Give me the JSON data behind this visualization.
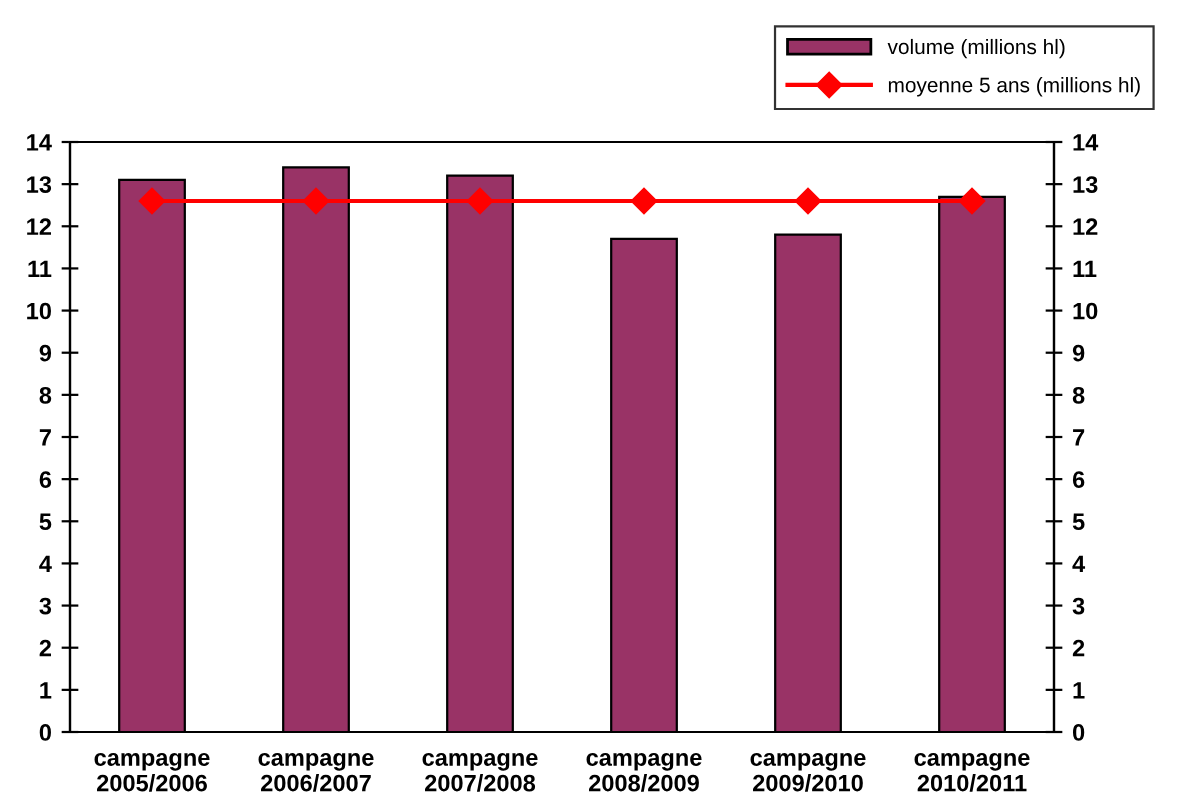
{
  "chart_data": {
    "type": "bar",
    "categories": [
      "campagne\n2005/2006",
      "campagne\n2006/2007",
      "campagne\n2007/2008",
      "campagne\n2008/2009",
      "campagne\n2009/2010",
      "campagne\n2010/2011"
    ],
    "series": [
      {
        "name": "volume (millions hl)",
        "color": "#993366",
        "values": [
          13.1,
          13.4,
          13.2,
          11.7,
          11.8,
          12.7
        ]
      },
      {
        "name": "moyenne 5 ans (millions hl)",
        "type": "line",
        "color": "#ff0000",
        "marker": "diamond",
        "values": [
          12.6,
          12.6,
          12.6,
          12.6,
          12.6,
          12.6
        ]
      }
    ],
    "ylim": [
      0,
      14
    ],
    "yticks": [
      0,
      1,
      2,
      3,
      4,
      5,
      6,
      7,
      8,
      9,
      10,
      11,
      12,
      13,
      14
    ],
    "y2lim": [
      0,
      14
    ],
    "y2ticks": [
      0,
      1,
      2,
      3,
      4,
      5,
      6,
      7,
      8,
      9,
      10,
      11,
      12,
      13,
      14
    ],
    "grid": false,
    "legend": "top right"
  }
}
